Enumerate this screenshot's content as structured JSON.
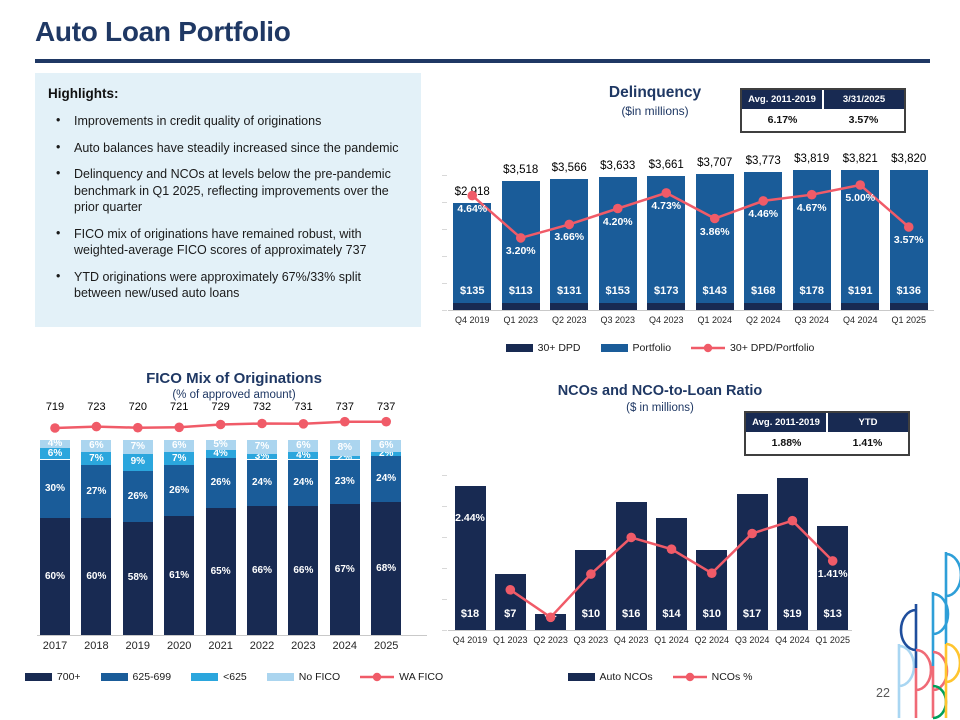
{
  "page": {
    "title": "Auto Loan Portfolio",
    "page_number": "22"
  },
  "colors": {
    "title_navy": "#1F3864",
    "navy_dark": "#182A52",
    "blue": "#1A5C99",
    "cyan": "#2BA6DD",
    "light_blue": "#ABD5EF",
    "red_line": "#F05B68",
    "highlight_bg": "#E3F1F8"
  },
  "highlights": {
    "heading": "Highlights:",
    "bullets": [
      "Improvements in credit quality of originations",
      "Auto balances have steadily increased since the pandemic",
      "Delinquency and NCOs at levels below the pre-pandemic benchmark in Q1 2025, reflecting improvements over the prior quarter",
      "FICO mix of originations have remained robust, with weighted-average FICO scores of approximately 737",
      "YTD originations were approximately 67%/33% split between new/used auto loans"
    ]
  },
  "chart_data": [
    {
      "id": "delinquency",
      "type": "bar",
      "title": "Delinquency",
      "subtitle": "($in millions)",
      "stats": {
        "headers": [
          "Avg. 2011-2019",
          "3/31/2025"
        ],
        "values": [
          "6.17%",
          "3.57%"
        ]
      },
      "categories": [
        "Q4 2019",
        "Q1 2023",
        "Q2 2023",
        "Q3 2023",
        "Q4 2023",
        "Q1 2024",
        "Q2 2024",
        "Q3 2024",
        "Q4 2024",
        "Q1 2025"
      ],
      "series": [
        {
          "name": "30+ DPD",
          "color": "navy_dark",
          "values": [
            135,
            113,
            131,
            153,
            173,
            143,
            168,
            178,
            191,
            136
          ]
        },
        {
          "name": "Portfolio",
          "color": "blue",
          "values": [
            2918,
            3518,
            3566,
            3633,
            3661,
            3707,
            3773,
            3819,
            3821,
            3820
          ]
        },
        {
          "name": "30+ DPD/Portfolio",
          "type": "line",
          "color": "red_line",
          "values": [
            4.64,
            3.2,
            3.66,
            4.2,
            4.73,
            3.86,
            4.46,
            4.67,
            5.0,
            3.57
          ]
        }
      ],
      "legend": [
        {
          "label": "30+ DPD",
          "swatch": "navy_dark"
        },
        {
          "label": "Portfolio",
          "swatch": "blue"
        },
        {
          "label": "30+ DPD/Portfolio",
          "swatch": "line",
          "color": "red_line"
        }
      ],
      "ylim": [
        0,
        3821
      ],
      "grid": false,
      "legend_position": "bottom"
    },
    {
      "id": "fico",
      "type": "bar",
      "title": "FICO Mix of Originations",
      "subtitle": "(% of approved amount)",
      "categories": [
        "2017",
        "2018",
        "2019",
        "2020",
        "2021",
        "2022",
        "2023",
        "2024",
        "2025"
      ],
      "series": [
        {
          "name": "700+",
          "color": "navy_dark",
          "values": [
            60,
            60,
            58,
            61,
            65,
            66,
            66,
            67,
            68
          ]
        },
        {
          "name": "625-699",
          "color": "blue",
          "values": [
            30,
            27,
            26,
            26,
            26,
            24,
            24,
            23,
            24
          ]
        },
        {
          "name": "<625",
          "color": "cyan",
          "values": [
            6,
            7,
            9,
            7,
            4,
            3,
            4,
            2,
            2
          ]
        },
        {
          "name": "No FICO",
          "color": "light_blue",
          "values": [
            4,
            6,
            7,
            6,
            5,
            7,
            6,
            8,
            6
          ]
        },
        {
          "name": "WA FICO",
          "type": "line",
          "color": "red_line",
          "values": [
            719,
            723,
            720,
            721,
            729,
            732,
            731,
            737,
            737
          ]
        }
      ],
      "legend": [
        {
          "label": "700+",
          "swatch": "navy_dark"
        },
        {
          "label": "625-699",
          "swatch": "blue"
        },
        {
          "label": "<625",
          "swatch": "cyan"
        },
        {
          "label": "No FICO",
          "swatch": "light_blue"
        },
        {
          "label": "WA FICO",
          "swatch": "line",
          "color": "red_line"
        }
      ],
      "stacked": true,
      "ylim": [
        0,
        100
      ],
      "grid": false,
      "legend_position": "bottom"
    },
    {
      "id": "nco",
      "type": "bar",
      "title": "NCOs and NCO-to-Loan Ratio",
      "subtitle": "($ in millions)",
      "stats": {
        "headers": [
          "Avg. 2011-2019",
          "YTD"
        ],
        "values": [
          "1.88%",
          "1.41%"
        ]
      },
      "categories": [
        "Q4 2019",
        "Q1 2023",
        "Q2 2023",
        "Q3 2023",
        "Q4 2023",
        "Q1 2024",
        "Q2 2024",
        "Q3 2024",
        "Q4 2024",
        "Q1 2025"
      ],
      "series": [
        {
          "name": "Auto NCOs",
          "color": "navy_dark",
          "values": [
            18,
            7,
            2,
            10,
            16,
            14,
            10,
            17,
            19,
            13
          ]
        },
        {
          "name": "NCOs %",
          "type": "line",
          "color": "red_line",
          "values": [
            2.44,
            0.82,
            0.26,
            1.14,
            1.89,
            1.65,
            1.16,
            1.97,
            2.23,
            1.41
          ],
          "point_labels": {
            "0": "2.44%",
            "9": "1.41%"
          },
          "hidden_points": [
            0
          ]
        }
      ],
      "legend": [
        {
          "label": "Auto NCOs",
          "swatch": "navy_dark"
        },
        {
          "label": "NCOs %",
          "swatch": "line",
          "color": "red_line"
        }
      ],
      "ylim": [
        0,
        19
      ],
      "grid": false,
      "legend_position": "bottom"
    }
  ]
}
